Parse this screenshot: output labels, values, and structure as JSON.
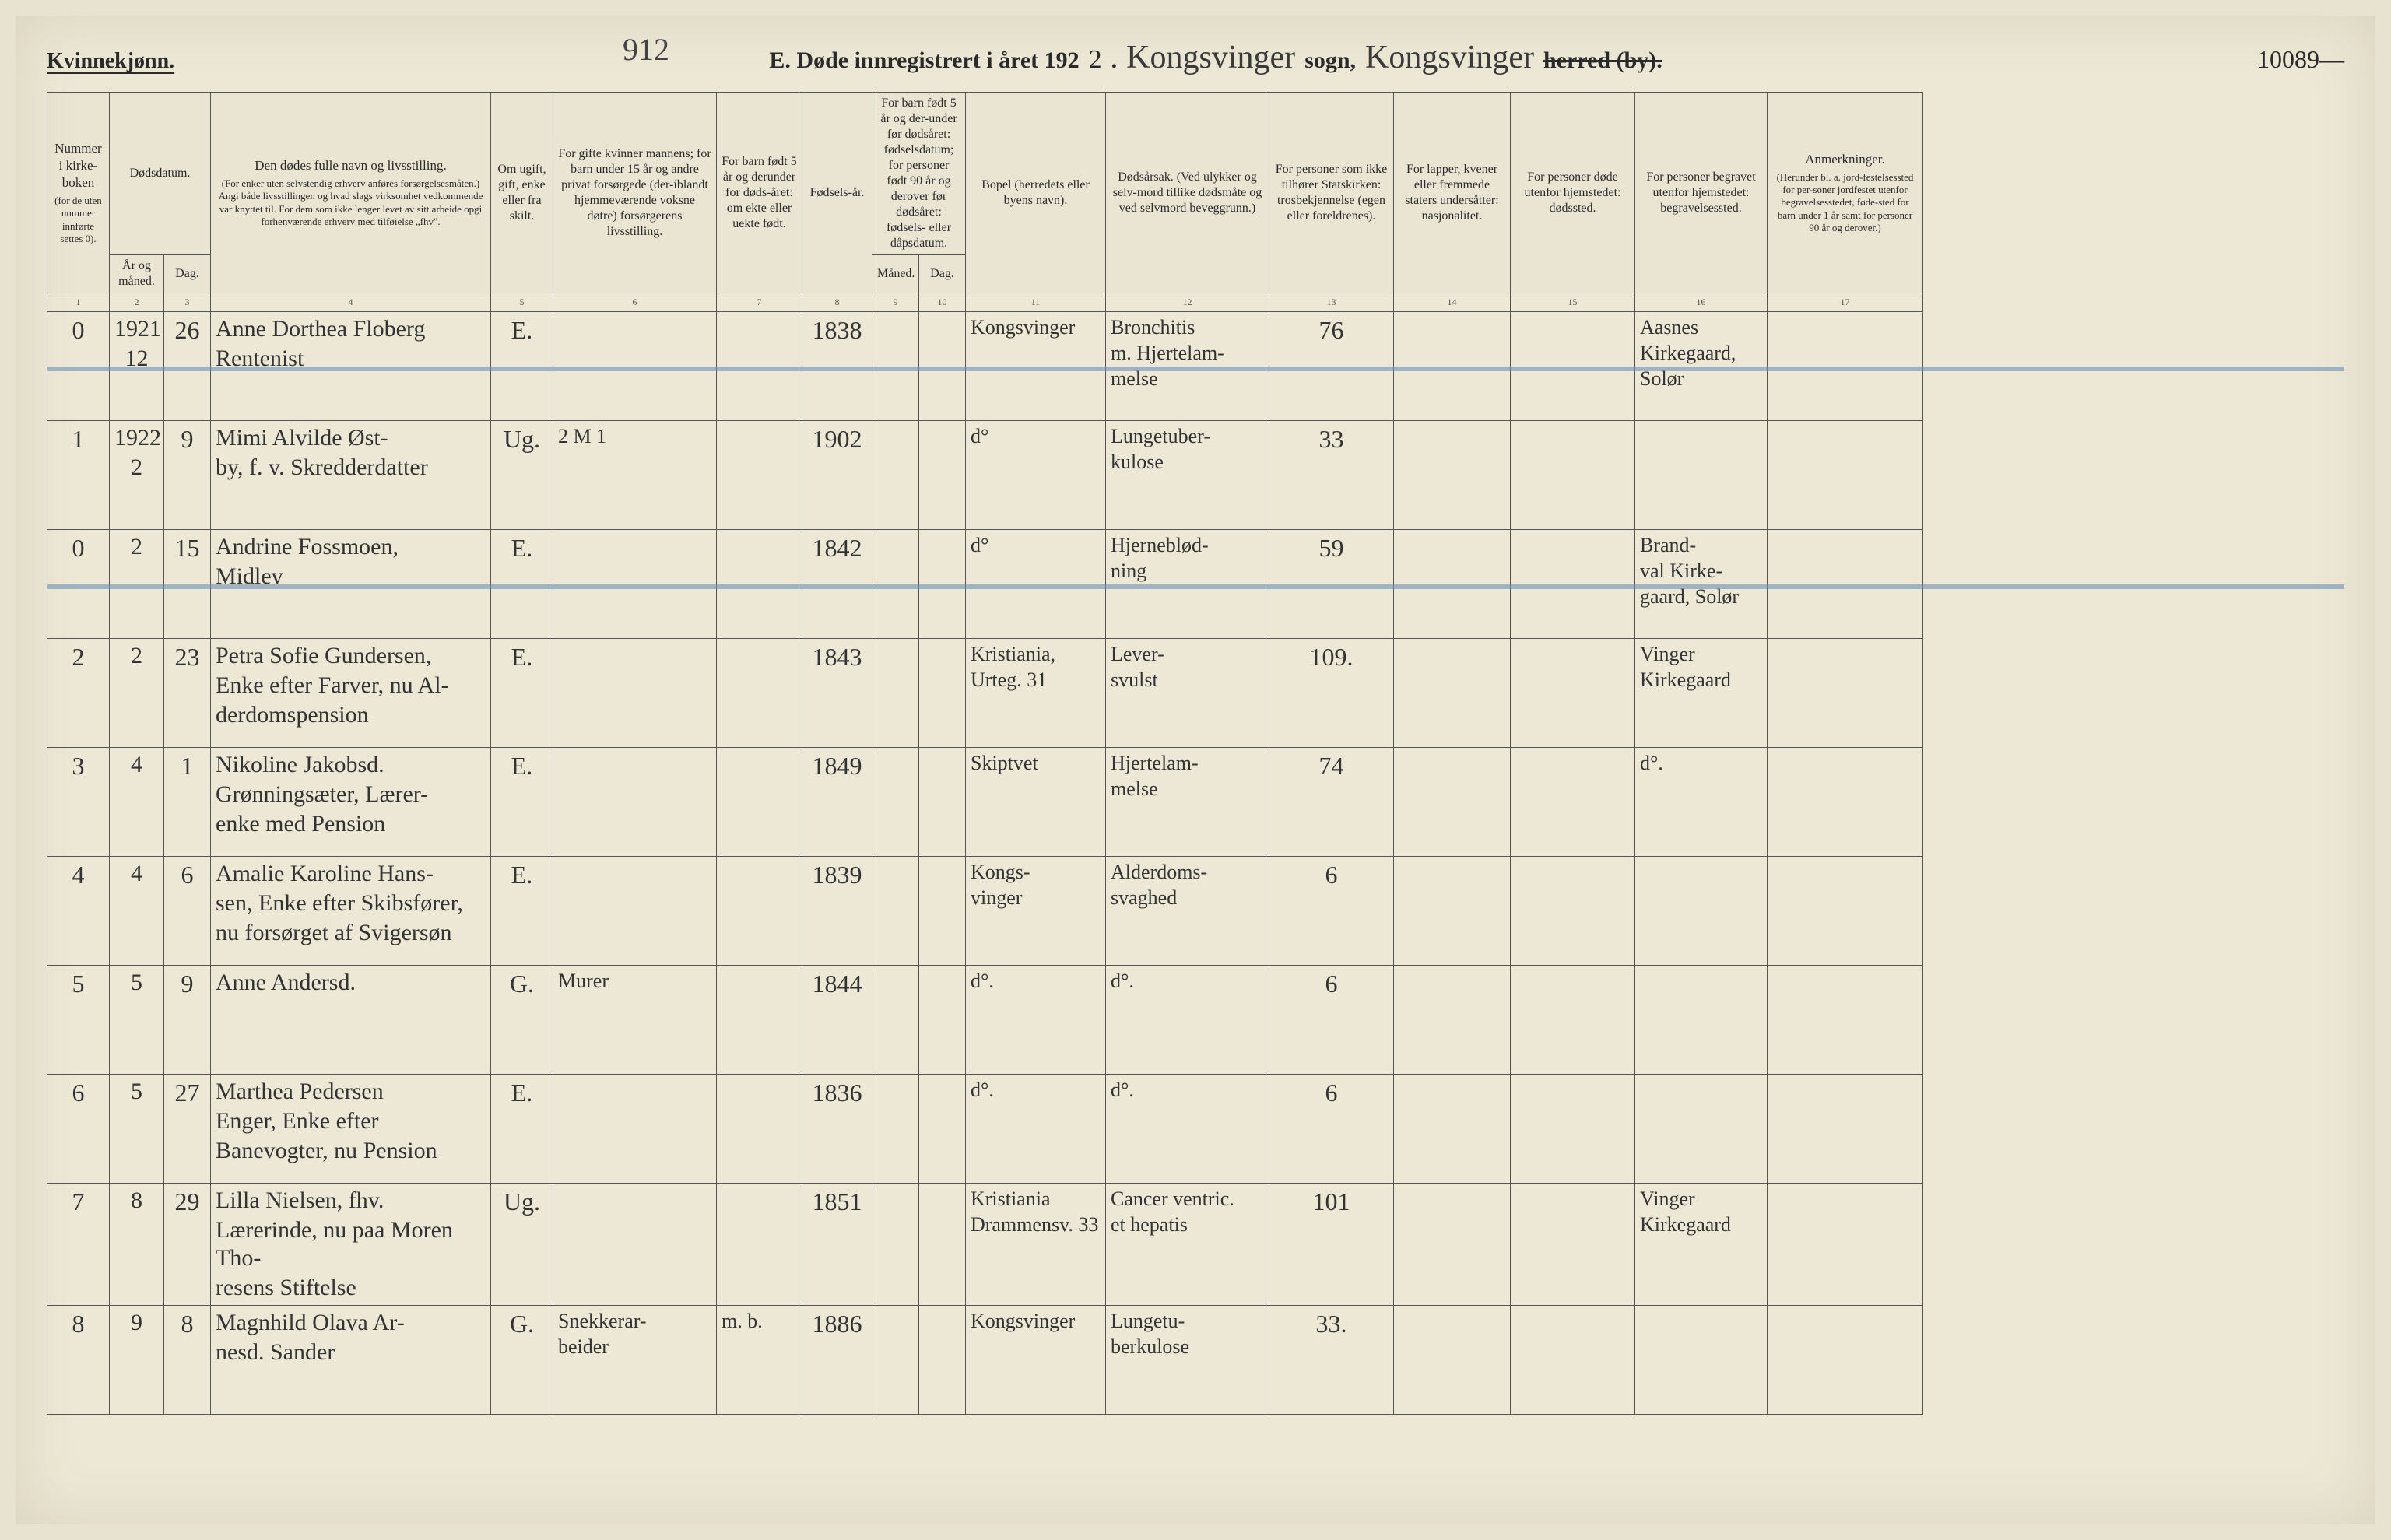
{
  "meta": {
    "gender_label": "Kvinnekjønn.",
    "page_number_handwritten": "912",
    "title_printed_prefix": "E.  Døde innregistrert i året 192",
    "year_suffix_handwritten": "2",
    "sogn_label": "sogn,",
    "herred_label": "herred (by).",
    "sogn_value": "Kongsvinger",
    "herred_value": "Kongsvinger",
    "right_number": "10089—",
    "period": "."
  },
  "columns": {
    "c1": {
      "main": "Nummer i kirke-boken",
      "sub": "(for de uten nummer innførte settes 0)."
    },
    "c2_group": "Dødsdatum.",
    "c2": "År og måned.",
    "c3": "Dag.",
    "c4": {
      "main": "Den dødes fulle navn og livsstilling.",
      "sub": "(For enker uten selvstendig erhverv anføres forsørgelsesmåten.) Angi både livsstillingen og hvad slags virksomhet vedkommende var knyttet til. For dem som ikke lenger levet av sitt arbeide opgi forhenværende erhverv med tilføielse „fhv\"."
    },
    "c5": "Om ugift, gift, enke eller fra skilt.",
    "c6": "For gifte kvinner mannens; for barn under 15 år og andre privat forsørgede (der-iblandt hjemmeværende voksne døtre) forsørgerens livsstilling.",
    "c7": "For barn født 5 år og derunder for døds-året: om ekte eller uekte født.",
    "c8": "Fødsels-år.",
    "c9_group": "For barn født 5 år og der-under før dødsåret: fødselsdatum; for personer født 90 år og derover før dødsåret: fødsels- eller dåpsdatum.",
    "c9": "Måned.",
    "c10": "Dag.",
    "c11": "Bopel (herredets eller byens navn).",
    "c12": "Dødsårsak. (Ved ulykker og selv-mord tillike dødsmåte og ved selvmord beveggrunn.)",
    "c13": "For personer som ikke tilhører Statskirken: trosbekjennelse (egen eller foreldrenes).",
    "c14": "For lapper, kvener eller fremmede staters undersåtter: nasjonalitet.",
    "c15": "For personer døde utenfor hjemstedet: dødssted.",
    "c16": "For personer begravet utenfor hjemstedet: begravelsessted.",
    "c17": {
      "main": "Anmerkninger.",
      "sub": "(Herunder bl. a. jord-festelsessted for per-soner jordfestet utenfor begravelsesstedet, føde-sted for barn under 1 år samt for personer 90 år og derover.)"
    }
  },
  "colnums": [
    "1",
    "2",
    "3",
    "4",
    "5",
    "6",
    "7",
    "8",
    "9",
    "10",
    "11",
    "12",
    "13",
    "14",
    "15",
    "16",
    "17"
  ],
  "rows": [
    {
      "no": "0",
      "year_month": "1921\n12",
      "day": "26",
      "name": "Anne Dorthea Floberg\nRentenist",
      "civil": "E.",
      "provider": "",
      "legit": "",
      "birth": "1838",
      "bm": "",
      "bd": "",
      "bopel": "Kongsvinger",
      "cause": "Bronchitis\nm. Hjertelam-\nmelse",
      "c13": "76",
      "c14": "",
      "c15": "",
      "c16": "Aasnes\nKirkegaard,\nSolør",
      "c17": "",
      "struck": true
    },
    {
      "no": "1",
      "year_month": "1922\n2",
      "day": "9",
      "name": "Mimi Alvilde Øst-\nby, f. v. Skredderdatter",
      "civil": "Ug.",
      "provider": "2 M 1",
      "legit": "",
      "birth": "1902",
      "bm": "",
      "bd": "",
      "bopel": "d°",
      "cause": "Lungetuber-\nkulose",
      "c13": "33",
      "c14": "",
      "c15": "",
      "c16": "",
      "c17": ""
    },
    {
      "no": "0",
      "year_month": "2",
      "day": "15",
      "name": "Andrine Fossmoen,\nMidlev",
      "civil": "E.",
      "provider": "",
      "legit": "",
      "birth": "1842",
      "bm": "",
      "bd": "",
      "bopel": "d°",
      "cause": "Hjerneblød-\nning",
      "c13": "59",
      "c14": "",
      "c15": "",
      "c16": "Brand-\nval Kirke-\ngaard, Solør",
      "c17": "",
      "struck": true
    },
    {
      "no": "2",
      "year_month": "2",
      "day": "23",
      "name": "Petra Sofie Gundersen,\nEnke efter Farver, nu Al-\nderdomspension",
      "civil": "E.",
      "provider": "",
      "legit": "",
      "birth": "1843",
      "bm": "",
      "bd": "",
      "bopel": "Kristiania,\nUrteg. 31",
      "cause": "Lever-\nsvulst",
      "c13": "109.",
      "c14": "",
      "c15": "",
      "c16": "Vinger\nKirkegaard",
      "c17": ""
    },
    {
      "no": "3",
      "year_month": "4",
      "day": "1",
      "name": "Nikoline Jakobsd.\nGrønningsæter, Lærer-\nenke med Pension",
      "civil": "E.",
      "provider": "",
      "legit": "",
      "birth": "1849",
      "bm": "",
      "bd": "",
      "bopel": "Skiptvet",
      "cause": "Hjertelam-\nmelse",
      "c13": "74",
      "c14": "",
      "c15": "",
      "c16": "d°.",
      "c17": ""
    },
    {
      "no": "4",
      "year_month": "4",
      "day": "6",
      "name": "Amalie Karoline Hans-\nsen, Enke efter Skibsfører,\nnu forsørget af Svigersøn",
      "civil": "E.",
      "provider": "",
      "legit": "",
      "birth": "1839",
      "bm": "",
      "bd": "",
      "bopel": "Kongs-\nvinger",
      "cause": "Alderdoms-\nsvaghed",
      "c13": "6",
      "c14": "",
      "c15": "",
      "c16": "",
      "c17": ""
    },
    {
      "no": "5",
      "year_month": "5",
      "day": "9",
      "name": "Anne Andersd.",
      "civil": "G.",
      "provider": "Murer",
      "legit": "",
      "birth": "1844",
      "bm": "",
      "bd": "",
      "bopel": "d°.",
      "cause": "d°.",
      "c13": "6",
      "c14": "",
      "c15": "",
      "c16": "",
      "c17": ""
    },
    {
      "no": "6",
      "year_month": "5",
      "day": "27",
      "name": "Marthea Pedersen\nEnger, Enke efter\nBanevogter, nu Pension",
      "civil": "E.",
      "provider": "",
      "legit": "",
      "birth": "1836",
      "bm": "",
      "bd": "",
      "bopel": "d°.",
      "cause": "d°.",
      "c13": "6",
      "c14": "",
      "c15": "",
      "c16": "",
      "c17": ""
    },
    {
      "no": "7",
      "year_month": "8",
      "day": "29",
      "name": "Lilla Nielsen, fhv.\nLærerinde, nu paa Moren Tho-\nresens Stiftelse",
      "civil": "Ug.",
      "provider": "",
      "legit": "",
      "birth": "1851",
      "bm": "",
      "bd": "",
      "bopel": "Kristiania\nDrammensv. 33",
      "cause": "Cancer ventric.\net hepatis",
      "c13": "101",
      "c14": "",
      "c15": "",
      "c16": "Vinger\nKirkegaard",
      "c17": ""
    },
    {
      "no": "8",
      "year_month": "9",
      "day": "8",
      "name": "Magnhild Olava Ar-\nnesd. Sander",
      "civil": "G.",
      "provider": "Snekkerar-\nbeider",
      "legit": "m. b.",
      "birth": "1886",
      "bm": "",
      "bd": "",
      "bopel": "Kongsvinger",
      "cause": "Lungetu-\nberkulose",
      "c13": "33.",
      "c14": "",
      "c15": "",
      "c16": "",
      "c17": ""
    }
  ]
}
